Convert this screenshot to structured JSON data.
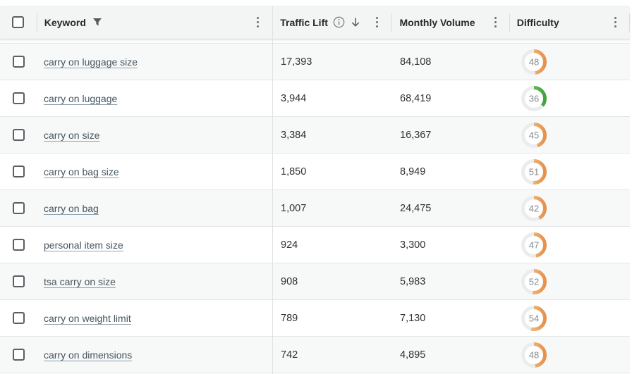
{
  "table": {
    "columns": {
      "keyword": "Keyword",
      "traffic": "Traffic Lift",
      "volume": "Monthly Volume",
      "difficulty": "Difficulty"
    },
    "rows": [
      {
        "keyword": "carry on luggage size",
        "traffic": "17,393",
        "volume": "84,108",
        "difficulty": 48
      },
      {
        "keyword": "carry on luggage",
        "traffic": "3,944",
        "volume": "68,419",
        "difficulty": 36
      },
      {
        "keyword": "carry on size",
        "traffic": "3,384",
        "volume": "16,367",
        "difficulty": 45
      },
      {
        "keyword": "carry on bag size",
        "traffic": "1,850",
        "volume": "8,949",
        "difficulty": 51
      },
      {
        "keyword": "carry on bag",
        "traffic": "1,007",
        "volume": "24,475",
        "difficulty": 42
      },
      {
        "keyword": "personal item size",
        "traffic": "924",
        "volume": "3,300",
        "difficulty": 47
      },
      {
        "keyword": "tsa carry on size",
        "traffic": "908",
        "volume": "5,983",
        "difficulty": 52
      },
      {
        "keyword": "carry on weight limit",
        "traffic": "789",
        "volume": "7,130",
        "difficulty": 54
      },
      {
        "keyword": "carry on dimensions",
        "traffic": "742",
        "volume": "4,895",
        "difficulty": 48
      }
    ]
  },
  "icons": {
    "keyword_filter": "funnel-icon",
    "traffic_info": "info-circle-icon",
    "traffic_sort": "arrow-down-icon",
    "column_menu": "kebab-menu-icon"
  },
  "colors": {
    "header_bg": "#f3f4f4",
    "stripe_bg": "#f7f8f8",
    "row_border": "#e4e6e7",
    "difficulty_track": "#ebeced",
    "difficulty_orange_start": "#f4d09a",
    "difficulty_orange_end": "#e6914c",
    "difficulty_green_start": "#82cb71",
    "difficulty_green_end": "#3fa33f",
    "gauge_text": "#85898c",
    "green_threshold": 40
  }
}
